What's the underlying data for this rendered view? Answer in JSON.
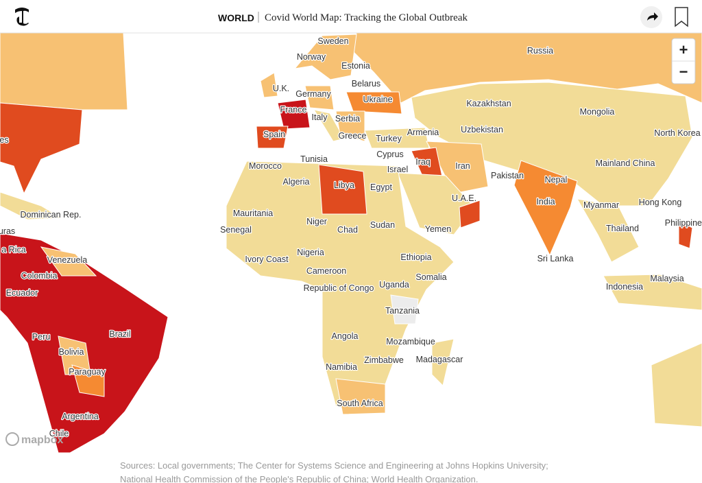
{
  "header": {
    "section": "WORLD",
    "title": "Covid World Map: Tracking the Global Outbreak"
  },
  "zoom": {
    "in": "+",
    "out": "−"
  },
  "attribution": "mapbox",
  "labels": [
    "Sweden",
    "Norway",
    "Russia",
    "Estonia",
    "Belarus",
    "U.K.",
    "Germany",
    "Ukraine",
    "Kazakhstan",
    "Mongolia",
    "France",
    "Italy",
    "Serbia",
    "Uzbekistan",
    "Armenia",
    "North Korea",
    "Spain",
    "Greece",
    "Turkey",
    "Cyprus",
    "Tunisia",
    "Iraq",
    "Iran",
    "Mainland China",
    "Morocco",
    "Israel",
    "Algeria",
    "Libya",
    "Egypt",
    "Pakistan",
    "Nepal",
    "Hong Kong",
    "India",
    "U.A.E.",
    "Myanmar",
    "Dominican Rep.",
    "Mauritania",
    "Niger",
    "Sudan",
    "Yemen",
    "Thailand",
    "Philippines",
    "Senegal",
    "Chad",
    "Nigeria",
    "Ethiopia",
    "Sri Lanka",
    "Ivory Coast",
    "Venezuela",
    "Cameroon",
    "Somalia",
    "Colombia",
    "Indonesia",
    "Malaysia",
    "Uganda",
    "Republic of Congo",
    "Ecuador",
    "Tanzania",
    "Brazil",
    "Peru",
    "Angola",
    "Mozambique",
    "Bolivia",
    "Madagascar",
    "Zimbabwe",
    "Namibia",
    "Paraguay",
    "South Africa",
    "Argentina",
    "Chile",
    "es",
    "uras",
    "a Rica"
  ],
  "sources": [
    "Sources: Local governments; The Center for Systems Science and Engineering at Johns Hopkins University;",
    "National Health Commission of the People's Republic of China; World Health Organization."
  ]
}
